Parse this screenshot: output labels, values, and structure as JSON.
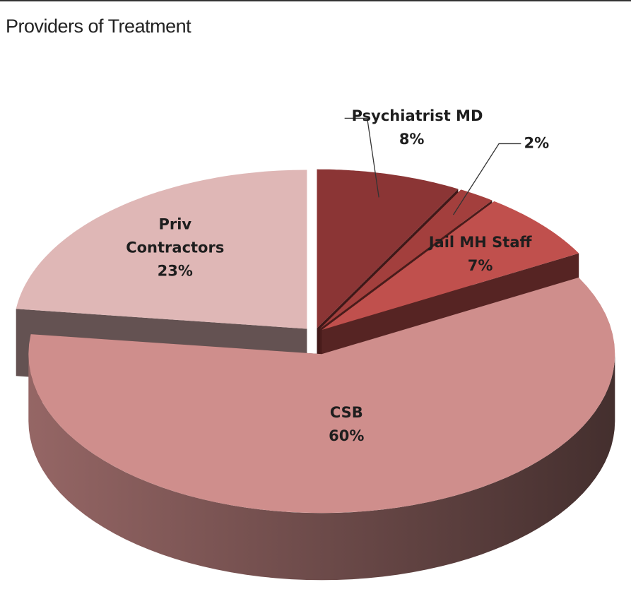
{
  "chart_data": {
    "type": "pie3d",
    "title": "Providers of Treatment",
    "categories": [
      "Psychiatrist MD",
      null,
      "Jail MH Staff",
      "CSB",
      "Priv Contractors"
    ],
    "values": [
      8,
      2,
      7,
      60,
      23
    ],
    "value_labels": [
      "8%",
      "2%",
      "7%",
      "60%",
      "23%"
    ],
    "colors": [
      "#8b3535",
      "#a33f3d",
      "#c0504d",
      "#cf8e8c",
      "#dfb7b6"
    ]
  }
}
